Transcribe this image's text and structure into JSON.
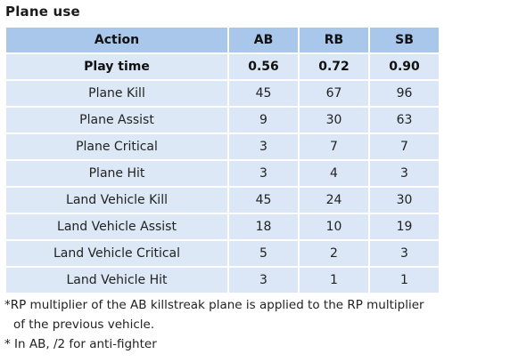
{
  "title": "Plane use",
  "table": {
    "headers": [
      "Action",
      "AB",
      "RB",
      "SB"
    ],
    "rows": [
      {
        "action": "Play time",
        "ab": "0.56",
        "rb": "0.72",
        "sb": "0.90",
        "bold": true
      },
      {
        "action": "Plane Kill",
        "ab": "45",
        "rb": "67",
        "sb": "96"
      },
      {
        "action": "Plane Assist",
        "ab": "9",
        "rb": "30",
        "sb": "63"
      },
      {
        "action": "Plane Critical",
        "ab": "3",
        "rb": "7",
        "sb": "7"
      },
      {
        "action": "Plane Hit",
        "ab": "3",
        "rb": "4",
        "sb": "3"
      },
      {
        "action": "Land Vehicle Kill",
        "ab": "45",
        "rb": "24",
        "sb": "30"
      },
      {
        "action": "Land Vehicle Assist",
        "ab": "18",
        "rb": "10",
        "sb": "19"
      },
      {
        "action": "Land Vehicle Critical",
        "ab": "5",
        "rb": "2",
        "sb": "3"
      },
      {
        "action": "Land Vehicle Hit",
        "ab": "3",
        "rb": "1",
        "sb": "1"
      }
    ]
  },
  "notes": {
    "line1": "*RP multiplier of the AB killstreak plane is applied to the RP multiplier",
    "line2": "of the previous vehicle.",
    "line3": "* In AB, /2 for anti-fighter"
  },
  "colors": {
    "header_bg": "#a8c7eb",
    "row_bg": "#dbe7f6"
  }
}
